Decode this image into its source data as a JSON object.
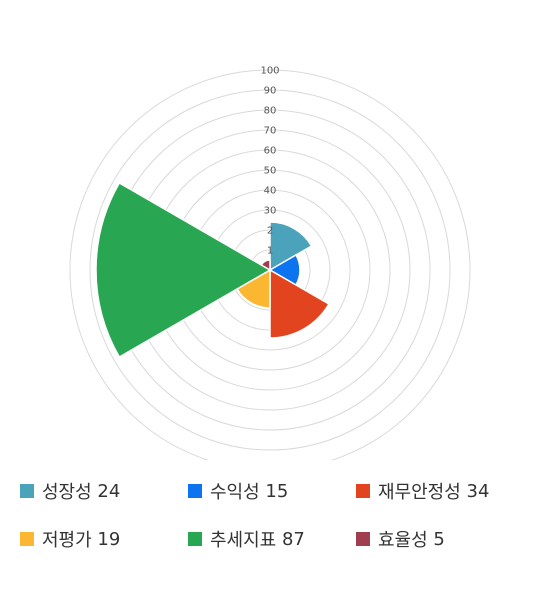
{
  "chart_data": {
    "type": "polar-area",
    "title": "",
    "radial_axis": {
      "min": 0,
      "max": 100,
      "ticks": [
        "1",
        "2",
        "30",
        "40",
        "50",
        "60",
        "70",
        "80",
        "90",
        "100"
      ]
    },
    "grid": true,
    "legend_position": "bottom",
    "series": [
      {
        "name": "성장성",
        "value": 24,
        "color": "#4aa3ba"
      },
      {
        "name": "수익성",
        "value": 15,
        "color": "#0d74f0"
      },
      {
        "name": "재무안정성",
        "value": 34,
        "color": "#e2441f"
      },
      {
        "name": "저평가",
        "value": 19,
        "color": "#fbb731"
      },
      {
        "name": "추세지표",
        "value": 87,
        "color": "#28a652"
      },
      {
        "name": "효율성",
        "value": 5,
        "color": "#a03e4f"
      }
    ]
  }
}
